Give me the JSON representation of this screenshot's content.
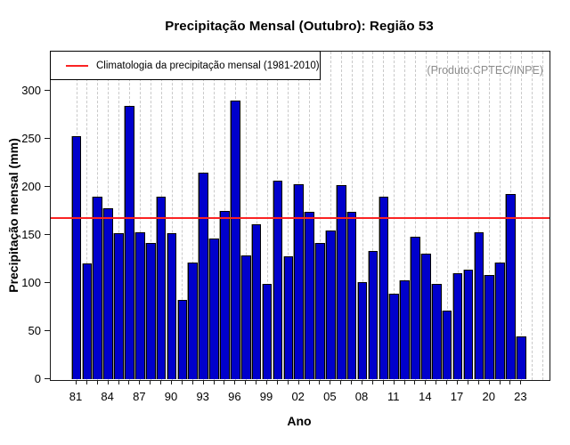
{
  "title": "Precipitação Mensal (Outubro): Região 53",
  "produto_label": "(Produto:CPTEC/INPE)",
  "legend": {
    "label": "Climatologia da precipitação mensal (1981-2010)"
  },
  "chart_data": {
    "type": "bar",
    "title": "Precipitação Mensal (Outubro): Região 53",
    "xlabel": "Ano",
    "ylabel": "Precipitação mensal (mm)",
    "ylim": [
      0,
      341
    ],
    "yticks": [
      0,
      50,
      100,
      150,
      200,
      250,
      300
    ],
    "grid": "vertical-dashed",
    "legend_position": "topleft",
    "categories": [
      "1981",
      "1982",
      "1983",
      "1984",
      "1985",
      "1986",
      "1987",
      "1988",
      "1989",
      "1990",
      "1991",
      "1992",
      "1993",
      "1994",
      "1995",
      "1996",
      "1997",
      "1998",
      "1999",
      "2000",
      "2001",
      "2002",
      "2003",
      "2004",
      "2005",
      "2006",
      "2007",
      "2008",
      "2009",
      "2010",
      "2011",
      "2012",
      "2013",
      "2014",
      "2015",
      "2016",
      "2017",
      "2018",
      "2019",
      "2020",
      "2021",
      "2022",
      "2023"
    ],
    "x_tick_labels": [
      "81",
      "84",
      "87",
      "90",
      "93",
      "96",
      "99",
      "02",
      "05",
      "08",
      "11",
      "14",
      "17",
      "20",
      "23"
    ],
    "x_label_every": 3,
    "values": [
      253,
      121,
      190,
      178,
      152,
      285,
      153,
      142,
      190,
      152,
      83,
      122,
      215,
      147,
      176,
      290,
      129,
      162,
      100,
      207,
      128,
      203,
      175,
      142,
      155,
      202,
      175,
      101,
      134,
      190,
      89,
      103,
      149,
      131,
      100,
      72,
      111,
      114,
      153,
      109,
      122,
      193,
      45
    ],
    "climatology_value": 168.4,
    "bar_color": "#0000cc",
    "bar_border_color": "#000000",
    "line_color": "#fa2323",
    "grid_color": "#c9c9c9"
  }
}
